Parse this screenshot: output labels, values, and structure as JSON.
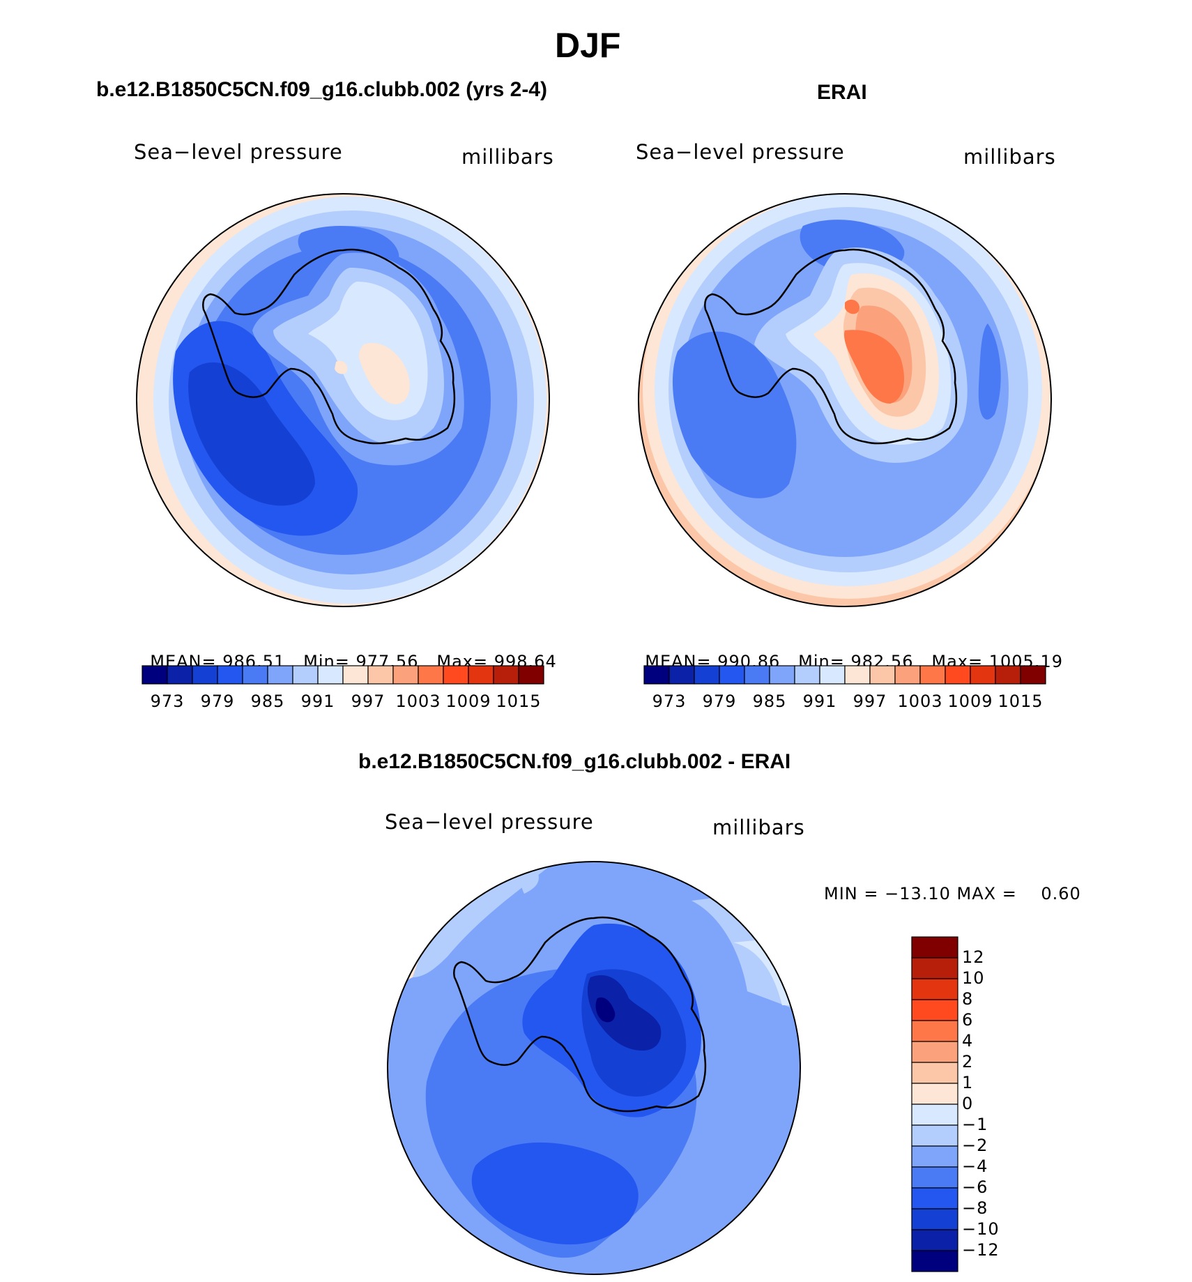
{
  "main_title": "DJF",
  "panels": [
    {
      "title": "b.e12.B1850C5CN.f09_g16.clubb.002 (yrs 2-4)",
      "var_label": "Sea−level pressure",
      "units": "millibars",
      "stats": {
        "mean_label": "MEAN=",
        "mean": "986.51",
        "min_label": "Min=",
        "min": "977.56",
        "max_label": "Max=",
        "max": "998.64"
      }
    },
    {
      "title": "ERAI",
      "var_label": "Sea−level pressure",
      "units": "millibars",
      "stats": {
        "mean_label": "MEAN=",
        "mean": "990.86",
        "min_label": "Min=",
        "min": "982.56",
        "max_label": "Max=",
        "max": "1005.19"
      }
    },
    {
      "title": "b.e12.B1850C5CN.f09_g16.clubb.002 - ERAI",
      "var_label": "Sea−level pressure",
      "units": "millibars",
      "stats_line": "MIN = −13.10 MAX =    0.60"
    }
  ],
  "colorbar_abs": {
    "colors": [
      "#00007f",
      "#0a21a8",
      "#1440d4",
      "#2456f0",
      "#4a7bf5",
      "#7fa5fb",
      "#b3cdfd",
      "#d8e8fe",
      "#fde6d5",
      "#fcc7a8",
      "#fba17b",
      "#fd7748",
      "#fe4a1e",
      "#e23510",
      "#b81f0a",
      "#800000"
    ],
    "tick_labels": [
      "973",
      "979",
      "985",
      "991",
      "997",
      "1003",
      "1009",
      "1015"
    ]
  },
  "colorbar_diff": {
    "colors": [
      "#00007f",
      "#0a21a8",
      "#1440d4",
      "#2456f0",
      "#4a7bf5",
      "#7fa5fb",
      "#b3cdfd",
      "#d8e8fe",
      "#fde6d5",
      "#fcc7a8",
      "#fba17b",
      "#fd7748",
      "#fe4a1e",
      "#e23510",
      "#b81f0a",
      "#800000"
    ],
    "tick_labels": [
      "12",
      "10",
      "8",
      "6",
      "4",
      "2",
      "1",
      "0",
      "−1",
      "−2",
      "−4",
      "−6",
      "−8",
      "−10",
      "−12"
    ]
  }
}
